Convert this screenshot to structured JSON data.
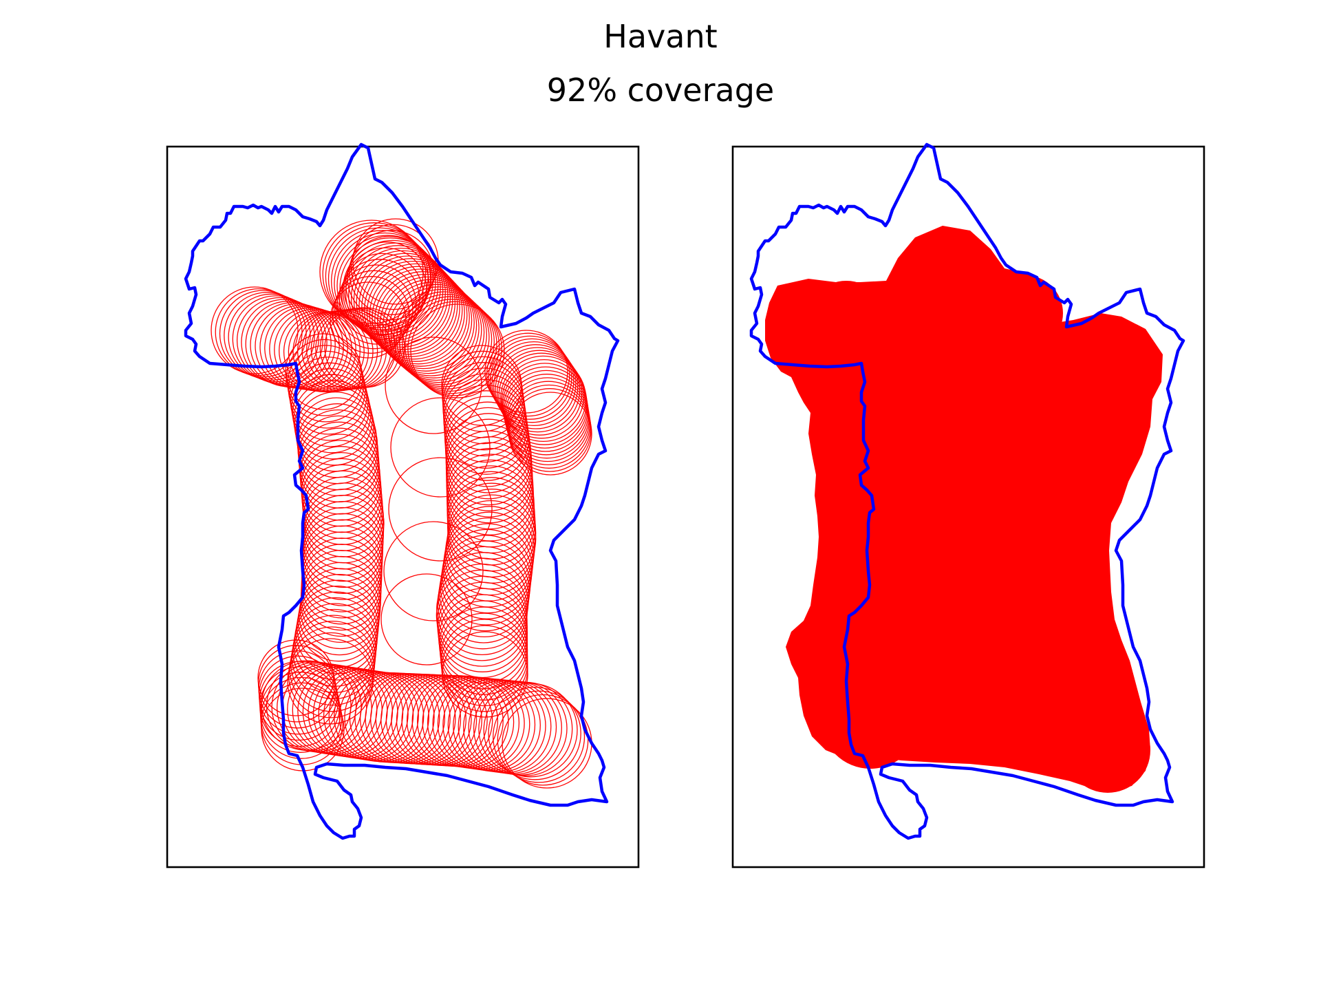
{
  "title": "Havant",
  "subtitle": "92% coverage",
  "colors": {
    "boundary": "#0000ff",
    "coverage": "#ff0000",
    "frame": "#000000",
    "background": "#ffffff"
  },
  "panels": [
    {
      "id": "circle-outlines",
      "style": "outline"
    },
    {
      "id": "coverage-union",
      "style": "filled"
    }
  ]
}
